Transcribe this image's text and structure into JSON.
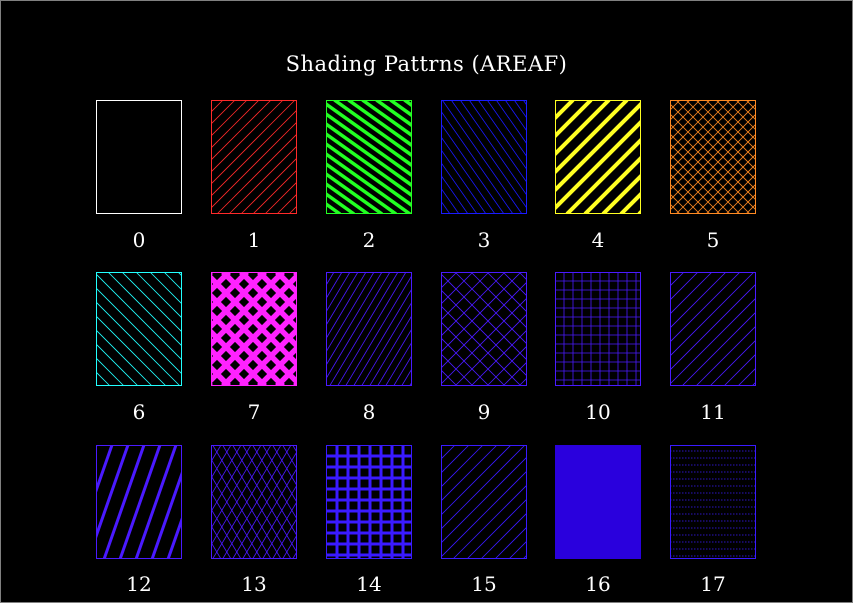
{
  "title": "Shading Pattrns (AREAF)",
  "patterns": [
    {
      "label": "0",
      "color": "#ffffff",
      "style": "empty"
    },
    {
      "label": "1",
      "color": "#ff2a2a",
      "style": "diag-right-thin"
    },
    {
      "label": "2",
      "color": "#22ff22",
      "style": "diag-left-thick"
    },
    {
      "label": "3",
      "color": "#1a1aff",
      "style": "diag-left-thin"
    },
    {
      "label": "4",
      "color": "#ffff22",
      "style": "diag-right-thick"
    },
    {
      "label": "5",
      "color": "#ff8a22",
      "style": "crosshatch-diag"
    },
    {
      "label": "6",
      "color": "#22ffff",
      "style": "diag-left-sparse"
    },
    {
      "label": "7",
      "color": "#ff22ff",
      "style": "crosshatch-diag-thick"
    },
    {
      "label": "8",
      "color": "#4a1aff",
      "style": "diag-right-dense"
    },
    {
      "label": "9",
      "color": "#4a1aff",
      "style": "crosshatch-diag-sparse"
    },
    {
      "label": "10",
      "color": "#4a1aff",
      "style": "grid-thin"
    },
    {
      "label": "11",
      "color": "#4a1aff",
      "style": "diag-right-medium"
    },
    {
      "label": "12",
      "color": "#4a1aff",
      "style": "diag-right-steep-thick"
    },
    {
      "label": "13",
      "color": "#4a1aff",
      "style": "crosshatch-diag-dense"
    },
    {
      "label": "14",
      "color": "#3a1aff",
      "style": "grid-thick"
    },
    {
      "label": "15",
      "color": "#3a1aff",
      "style": "diag-right-medium"
    },
    {
      "label": "16",
      "color": "#2a00dd",
      "style": "solid"
    },
    {
      "label": "17",
      "color": "#3a1aff",
      "style": "horizontal-dotted"
    }
  ]
}
